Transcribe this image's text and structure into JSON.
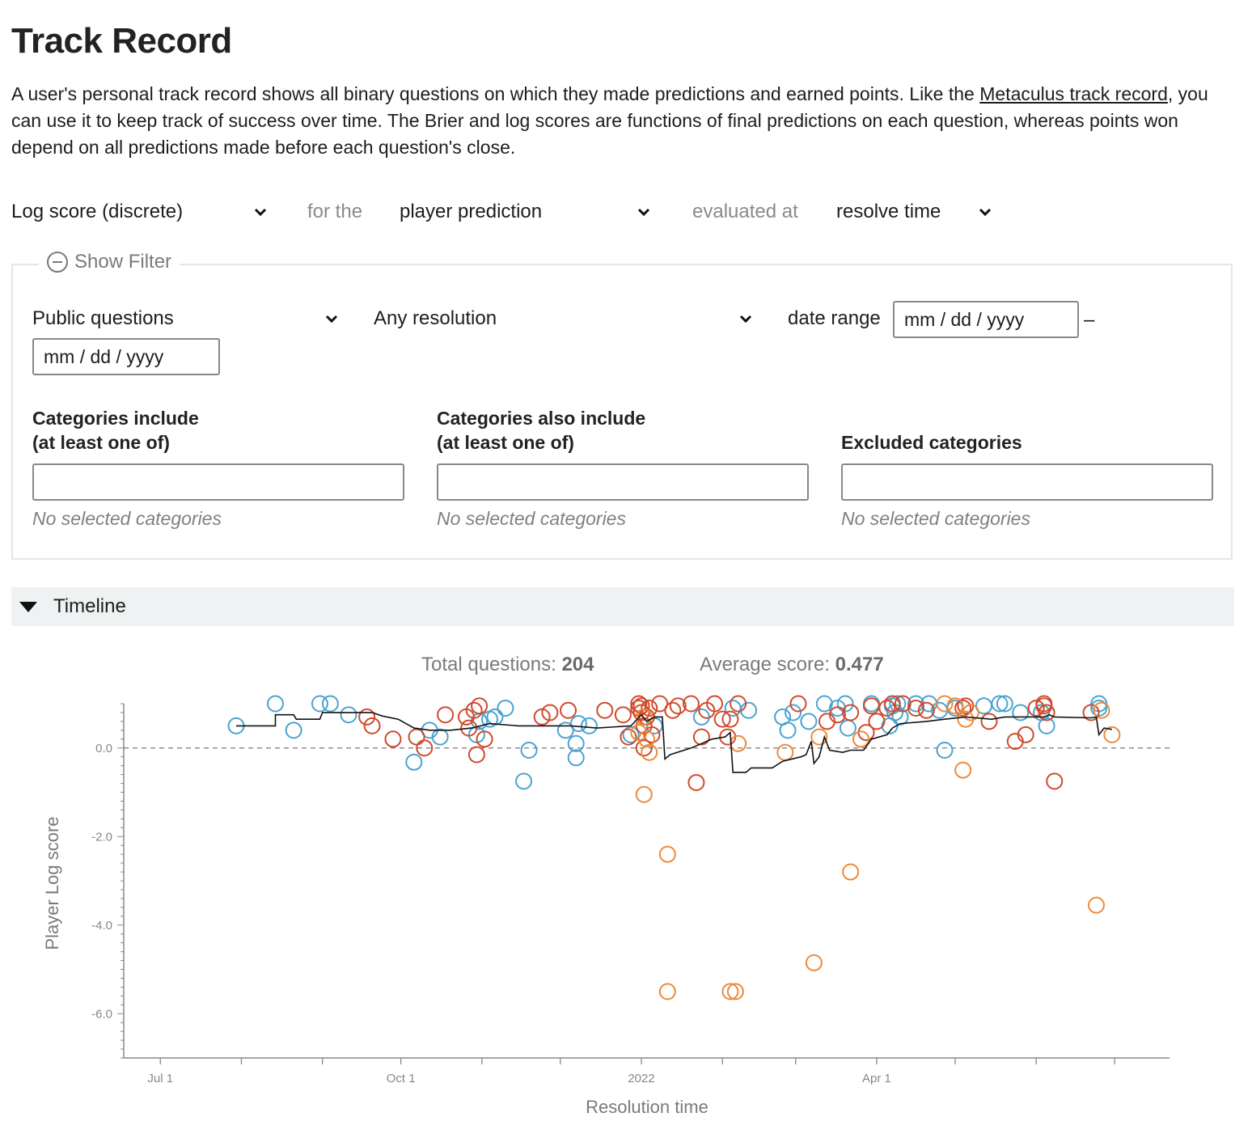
{
  "page": {
    "title": "Track Record",
    "intro_before": "A user's personal track record shows all binary questions on which they made predictions and earned points. Like the ",
    "intro_link": "Metaculus track record",
    "intro_after": ", you can use it to keep track of success over time. The Brier and log scores are functions of final predictions on each question, whereas points won depend on all predictions made before each question's close."
  },
  "controls": {
    "score_type": "Log score (discrete)",
    "for_the": "for the",
    "prediction_type": "player prediction",
    "evaluated_at": "evaluated at",
    "eval_time": "resolve time"
  },
  "filter": {
    "toggle_label": "Show Filter",
    "question_scope": "Public questions",
    "resolution": "Any resolution",
    "date_range_label": "date range",
    "date_start_placeholder": "mm / dd / yyyy",
    "date_dash": "–",
    "date_end_placeholder": "mm / dd / yyyy",
    "cat_include_label_1": "Categories include",
    "cat_include_label_2": "(at least one of)",
    "cat_also_label_1": "Categories also include",
    "cat_also_label_2": "(at least one of)",
    "cat_excluded_label": "Excluded categories",
    "no_categories": "No selected categories"
  },
  "timeline": {
    "label": "Timeline",
    "total_label": "Total questions:",
    "total_value": "204",
    "avg_label": "Average score:",
    "avg_value": "0.477"
  },
  "colors": {
    "blue": "#4aa3d0",
    "red": "#d04a2c",
    "orange": "#ec8a3a",
    "line": "#111111"
  },
  "chart_data": {
    "type": "scatter",
    "xlabel": "Resolution time",
    "ylabel": "Player Log score",
    "y_ticks": [
      "0.0",
      "-2.0",
      "-4.0",
      "-6.0"
    ],
    "x_ticks": [
      {
        "date": "2021-07-01",
        "label": "Jul 1"
      },
      {
        "date": "2021-10-01",
        "label": "Oct 1"
      },
      {
        "date": "2022-01-01",
        "label": "2022"
      },
      {
        "date": "2022-04-01",
        "label": "Apr 1"
      }
    ],
    "x_range": [
      "2021-06-17",
      "2022-07-22"
    ],
    "ylim": [
      -7.0,
      1.0
    ],
    "zero_line": "dashed",
    "series": [
      {
        "color": "blue",
        "points": [
          [
            "2021-07-30",
            0.5
          ],
          [
            "2021-08-14",
            1.0
          ],
          [
            "2021-08-21",
            0.4
          ],
          [
            "2021-08-31",
            1.0
          ],
          [
            "2021-09-04",
            1.0
          ],
          [
            "2021-09-11",
            0.75
          ],
          [
            "2021-10-06",
            -0.32
          ],
          [
            "2021-10-12",
            0.4
          ],
          [
            "2021-10-16",
            0.25
          ],
          [
            "2021-10-30",
            0.3
          ],
          [
            "2021-10-31",
            0.6
          ],
          [
            "2021-11-04",
            0.65
          ],
          [
            "2021-11-06",
            0.7
          ],
          [
            "2021-11-10",
            0.9
          ],
          [
            "2021-11-17",
            -0.75
          ],
          [
            "2021-11-19",
            -0.05
          ],
          [
            "2021-12-03",
            0.4
          ],
          [
            "2021-12-07",
            -0.22
          ],
          [
            "2021-12-07",
            0.1
          ],
          [
            "2021-12-08",
            0.55
          ],
          [
            "2021-12-12",
            0.5
          ],
          [
            "2021-12-28",
            0.3
          ],
          [
            "2022-01-06",
            0.5
          ],
          [
            "2022-01-24",
            0.7
          ],
          [
            "2022-02-05",
            0.9
          ],
          [
            "2022-02-11",
            0.85
          ],
          [
            "2022-02-24",
            0.7
          ],
          [
            "2022-02-26",
            0.4
          ],
          [
            "2022-02-28",
            0.8
          ],
          [
            "2022-03-06",
            0.6
          ],
          [
            "2022-03-12",
            1.0
          ],
          [
            "2022-03-17",
            0.9
          ],
          [
            "2022-03-20",
            1.0
          ],
          [
            "2022-03-21",
            0.45
          ],
          [
            "2022-03-30",
            1.0
          ],
          [
            "2022-04-06",
            0.5
          ],
          [
            "2022-04-07",
            0.95
          ],
          [
            "2022-04-08",
            0.8
          ],
          [
            "2022-04-09",
            1.0
          ],
          [
            "2022-04-10",
            0.7
          ],
          [
            "2022-04-16",
            1.0
          ],
          [
            "2022-04-21",
            1.0
          ],
          [
            "2022-04-25",
            0.85
          ],
          [
            "2022-04-27",
            -0.05
          ],
          [
            "2022-05-01",
            0.9
          ],
          [
            "2022-05-12",
            0.95
          ],
          [
            "2022-05-18",
            1.0
          ],
          [
            "2022-05-20",
            1.0
          ],
          [
            "2022-05-26",
            0.8
          ],
          [
            "2022-06-03",
            0.8
          ],
          [
            "2022-06-05",
            0.5
          ],
          [
            "2022-06-25",
            0.9
          ],
          [
            "2022-06-25",
            1.0
          ]
        ]
      },
      {
        "color": "red",
        "points": [
          [
            "2021-09-18",
            0.7
          ],
          [
            "2021-09-20",
            0.5
          ],
          [
            "2021-09-28",
            0.2
          ],
          [
            "2021-10-07",
            0.25
          ],
          [
            "2021-10-10",
            0.0
          ],
          [
            "2021-10-18",
            0.75
          ],
          [
            "2021-10-26",
            0.7
          ],
          [
            "2021-10-27",
            0.45
          ],
          [
            "2021-10-29",
            0.85
          ],
          [
            "2021-10-30",
            -0.15
          ],
          [
            "2021-10-31",
            0.95
          ],
          [
            "2021-11-02",
            0.2
          ],
          [
            "2021-11-24",
            0.7
          ],
          [
            "2021-11-27",
            0.8
          ],
          [
            "2021-12-04",
            0.85
          ],
          [
            "2021-12-18",
            0.85
          ],
          [
            "2021-12-25",
            0.75
          ],
          [
            "2021-12-27",
            0.25
          ],
          [
            "2021-12-31",
            1.0
          ],
          [
            "2021-12-31",
            0.9
          ],
          [
            "2022-01-01",
            0.8
          ],
          [
            "2022-01-01",
            0.95
          ],
          [
            "2022-01-02",
            0.0
          ],
          [
            "2022-01-02",
            0.5
          ],
          [
            "2022-01-03",
            0.7
          ],
          [
            "2022-01-04",
            0.9
          ],
          [
            "2022-01-05",
            0.3
          ],
          [
            "2022-01-08",
            1.0
          ],
          [
            "2022-01-13",
            0.85
          ],
          [
            "2022-01-15",
            0.95
          ],
          [
            "2022-01-20",
            1.0
          ],
          [
            "2022-01-22",
            -0.78
          ],
          [
            "2022-01-24",
            0.25
          ],
          [
            "2022-01-26",
            0.85
          ],
          [
            "2022-01-29",
            1.0
          ],
          [
            "2022-02-01",
            0.65
          ],
          [
            "2022-02-03",
            0.25
          ],
          [
            "2022-02-04",
            0.65
          ],
          [
            "2022-02-07",
            1.0
          ],
          [
            "2022-03-02",
            1.0
          ],
          [
            "2022-03-13",
            0.6
          ],
          [
            "2022-03-17",
            0.75
          ],
          [
            "2022-03-22",
            0.8
          ],
          [
            "2022-03-28",
            0.35
          ],
          [
            "2022-03-30",
            0.95
          ],
          [
            "2022-04-01",
            0.6
          ],
          [
            "2022-04-05",
            0.9
          ],
          [
            "2022-04-07",
            1.0
          ],
          [
            "2022-04-11",
            1.0
          ],
          [
            "2022-04-16",
            0.9
          ],
          [
            "2022-04-20",
            0.85
          ],
          [
            "2022-05-04",
            0.9
          ],
          [
            "2022-05-05",
            0.95
          ],
          [
            "2022-05-14",
            0.6
          ],
          [
            "2022-05-24",
            0.15
          ],
          [
            "2022-05-28",
            0.3
          ],
          [
            "2022-06-01",
            0.9
          ],
          [
            "2022-06-04",
            0.95
          ],
          [
            "2022-06-04",
            1.0
          ],
          [
            "2022-06-05",
            0.8
          ],
          [
            "2022-06-08",
            -0.75
          ],
          [
            "2022-06-22",
            0.8
          ]
        ]
      },
      {
        "color": "orange",
        "points": [
          [
            "2021-12-31",
            0.35
          ],
          [
            "2022-01-02",
            0.7
          ],
          [
            "2022-01-02",
            -1.05
          ],
          [
            "2022-01-03",
            0.2
          ],
          [
            "2022-01-04",
            -0.1
          ],
          [
            "2022-01-11",
            -2.4
          ],
          [
            "2022-01-11",
            -5.5
          ],
          [
            "2022-02-04",
            -5.5
          ],
          [
            "2022-02-06",
            -5.5
          ],
          [
            "2022-02-07",
            0.1
          ],
          [
            "2022-02-25",
            -0.1
          ],
          [
            "2022-03-08",
            -4.85
          ],
          [
            "2022-03-10",
            0.25
          ],
          [
            "2022-03-22",
            -2.8
          ],
          [
            "2022-03-26",
            0.2
          ],
          [
            "2022-04-27",
            1.0
          ],
          [
            "2022-05-01",
            0.95
          ],
          [
            "2022-05-04",
            -0.5
          ],
          [
            "2022-05-05",
            0.65
          ],
          [
            "2022-05-07",
            0.8
          ],
          [
            "2022-06-24",
            -3.55
          ],
          [
            "2022-06-26",
            0.85
          ],
          [
            "2022-06-30",
            0.3
          ]
        ]
      }
    ],
    "running_average": [
      [
        "2021-07-30",
        0.5
      ],
      [
        "2021-08-14",
        0.5
      ],
      [
        "2021-08-14",
        0.75
      ],
      [
        "2021-08-21",
        0.75
      ],
      [
        "2021-08-22",
        0.65
      ],
      [
        "2021-08-31",
        0.65
      ],
      [
        "2021-09-01",
        0.8
      ],
      [
        "2021-09-20",
        0.8
      ],
      [
        "2021-09-24",
        0.72
      ],
      [
        "2021-09-30",
        0.65
      ],
      [
        "2021-10-06",
        0.45
      ],
      [
        "2021-10-12",
        0.4
      ],
      [
        "2021-10-20",
        0.4
      ],
      [
        "2021-10-28",
        0.45
      ],
      [
        "2021-11-04",
        0.55
      ],
      [
        "2021-11-15",
        0.5
      ],
      [
        "2021-11-25",
        0.5
      ],
      [
        "2021-12-05",
        0.5
      ],
      [
        "2021-12-15",
        0.45
      ],
      [
        "2021-12-28",
        0.5
      ],
      [
        "2022-01-01",
        0.75
      ],
      [
        "2022-01-03",
        0.6
      ],
      [
        "2022-01-06",
        0.7
      ],
      [
        "2022-01-09",
        0.7
      ],
      [
        "2022-01-10",
        -0.25
      ],
      [
        "2022-01-12",
        -0.15
      ],
      [
        "2022-01-20",
        0.0
      ],
      [
        "2022-01-28",
        0.2
      ],
      [
        "2022-02-02",
        0.25
      ],
      [
        "2022-02-04",
        0.35
      ],
      [
        "2022-02-05",
        -0.55
      ],
      [
        "2022-02-10",
        -0.55
      ],
      [
        "2022-02-12",
        -0.45
      ],
      [
        "2022-02-20",
        -0.45
      ],
      [
        "2022-02-24",
        -0.3
      ],
      [
        "2022-03-03",
        -0.2
      ],
      [
        "2022-03-05",
        -0.15
      ],
      [
        "2022-03-07",
        0.15
      ],
      [
        "2022-03-08",
        -0.35
      ],
      [
        "2022-03-10",
        -0.2
      ],
      [
        "2022-03-12",
        0.25
      ],
      [
        "2022-03-14",
        -0.05
      ],
      [
        "2022-03-19",
        -0.1
      ],
      [
        "2022-03-22",
        -0.05
      ],
      [
        "2022-03-27",
        -0.05
      ],
      [
        "2022-03-30",
        0.2
      ],
      [
        "2022-04-05",
        0.3
      ],
      [
        "2022-04-07",
        0.45
      ],
      [
        "2022-04-10",
        0.55
      ],
      [
        "2022-04-20",
        0.6
      ],
      [
        "2022-04-27",
        0.65
      ],
      [
        "2022-05-05",
        0.7
      ],
      [
        "2022-05-15",
        0.65
      ],
      [
        "2022-05-20",
        0.7
      ],
      [
        "2022-05-30",
        0.7
      ],
      [
        "2022-06-04",
        0.7
      ],
      [
        "2022-06-06",
        0.75
      ],
      [
        "2022-06-08",
        0.7
      ],
      [
        "2022-06-22",
        0.68
      ],
      [
        "2022-06-24",
        0.7
      ],
      [
        "2022-06-25",
        0.3
      ],
      [
        "2022-06-27",
        0.45
      ],
      [
        "2022-06-30",
        0.42
      ]
    ]
  }
}
